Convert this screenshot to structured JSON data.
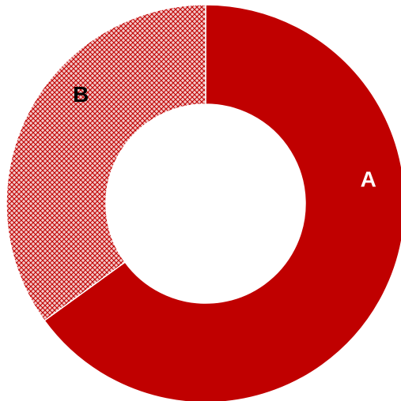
{
  "chart_data": {
    "type": "pie",
    "variant": "donut",
    "categories": [
      "A",
      "B"
    ],
    "values": [
      65,
      35
    ],
    "slice_labels": [
      "A",
      "B"
    ],
    "colors": {
      "A": "#c00000",
      "B": "#e6a0a0",
      "B_pattern": "#c00000",
      "A_label": "#ffffff",
      "B_label": "#000000"
    },
    "start": "12 o'clock",
    "direction": "clockwise",
    "legend": "none",
    "title": ""
  }
}
